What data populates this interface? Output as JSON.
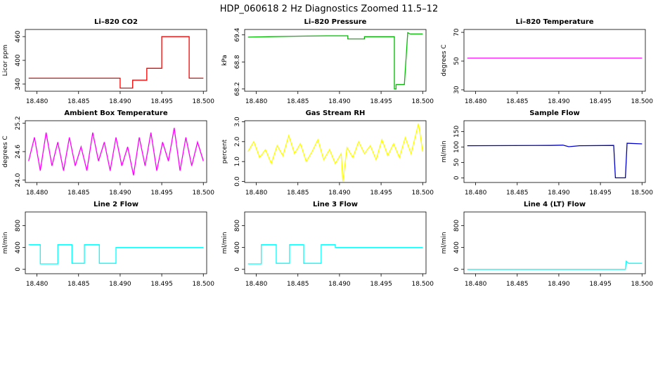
{
  "title": "HDP_060618  2 Hz Diagnostics Zoomed 11.5–12",
  "chart_data": [
    {
      "type": "line",
      "title": "Li–820 CO2",
      "ylabel": "Licor ppm",
      "color": "#ff0000",
      "x": [
        18.479,
        18.49,
        18.49,
        18.4915,
        18.4915,
        18.4932,
        18.4932,
        18.495,
        18.495,
        18.4983,
        18.4983,
        18.5
      ],
      "values": [
        355,
        355,
        330,
        330,
        350,
        350,
        380,
        380,
        460,
        460,
        355,
        355
      ],
      "xlim": [
        18.4786,
        18.5004
      ],
      "ylim": [
        322,
        478
      ],
      "xticks": [
        {
          "value": 18.48,
          "label": "18.480"
        },
        {
          "value": 18.485,
          "label": "18.485"
        },
        {
          "value": 18.49,
          "label": "18.490"
        },
        {
          "value": 18.495,
          "label": "18.495"
        },
        {
          "value": 18.5,
          "label": "18.500"
        }
      ],
      "yticks": [
        340,
        400,
        460
      ]
    },
    {
      "type": "line",
      "title": "Li–820 Pressure",
      "ylabel": "kPa",
      "color": "#00bb00",
      "x": [
        18.479,
        18.4845,
        18.4885,
        18.491,
        18.491,
        18.493,
        18.493,
        18.4966,
        18.4966,
        18.4968,
        18.4968,
        18.4978,
        18.4982,
        18.4985,
        18.5
      ],
      "values": [
        69.35,
        69.37,
        69.38,
        69.38,
        69.31,
        69.31,
        69.36,
        69.36,
        68.2,
        68.2,
        68.3,
        68.3,
        69.45,
        69.42,
        69.42
      ],
      "xlim": [
        18.4786,
        18.5004
      ],
      "ylim": [
        68.15,
        69.52
      ],
      "xticks": [
        {
          "value": 18.48,
          "label": "18.480"
        },
        {
          "value": 18.485,
          "label": "18.485"
        },
        {
          "value": 18.49,
          "label": "18.490"
        },
        {
          "value": 18.495,
          "label": "18.495"
        },
        {
          "value": 18.5,
          "label": "18.500"
        }
      ],
      "yticks": [
        {
          "value": 68.2,
          "label": "68.2"
        },
        {
          "value": 68.8,
          "label": "68.8"
        },
        {
          "value": 69.4,
          "label": "69.4"
        }
      ]
    },
    {
      "type": "line",
      "title": "Li–820 Temperature",
      "ylabel": "degrees C",
      "color": "#ff00ff",
      "x": [
        18.479,
        18.5
      ],
      "values": [
        52,
        52
      ],
      "xlim": [
        18.4786,
        18.5004
      ],
      "ylim": [
        29,
        72
      ],
      "xticks": [
        {
          "value": 18.48,
          "label": "18.480"
        },
        {
          "value": 18.485,
          "label": "18.485"
        },
        {
          "value": 18.49,
          "label": "18.490"
        },
        {
          "value": 18.495,
          "label": "18.495"
        },
        {
          "value": 18.5,
          "label": "18.500"
        }
      ],
      "yticks": [
        30,
        50,
        70
      ]
    },
    {
      "type": "line",
      "title": "Ambient Box Temperature",
      "ylabel": "degrees C",
      "color": "#ff00ff",
      "x": [
        18.479,
        18.4797,
        18.4804,
        18.4811,
        18.4818,
        18.4825,
        18.4832,
        18.4839,
        18.4846,
        18.4853,
        18.486,
        18.4867,
        18.4874,
        18.4881,
        18.4888,
        18.4895,
        18.4902,
        18.4909,
        18.4916,
        18.4923,
        18.493,
        18.4937,
        18.4944,
        18.4951,
        18.4958,
        18.4965,
        18.4972,
        18.4979,
        18.4986,
        18.4993,
        18.5
      ],
      "values": [
        24.4,
        24.9,
        24.2,
        25.0,
        24.3,
        24.8,
        24.2,
        24.9,
        24.3,
        24.7,
        24.2,
        25.0,
        24.4,
        24.8,
        24.2,
        24.9,
        24.3,
        24.7,
        24.1,
        24.9,
        24.3,
        25.0,
        24.2,
        24.8,
        24.4,
        25.1,
        24.2,
        24.9,
        24.3,
        24.8,
        24.4
      ],
      "xlim": [
        18.4786,
        18.5004
      ],
      "ylim": [
        23.95,
        25.25
      ],
      "xticks": [
        {
          "value": 18.48,
          "label": "18.480"
        },
        {
          "value": 18.485,
          "label": "18.485"
        },
        {
          "value": 18.49,
          "label": "18.490"
        },
        {
          "value": 18.495,
          "label": "18.495"
        },
        {
          "value": 18.5,
          "label": "18.500"
        }
      ],
      "yticks": [
        {
          "value": 24.0,
          "label": "24.0"
        },
        24.6,
        25.2
      ]
    },
    {
      "type": "line",
      "title": "Gas Stream RH",
      "ylabel": "percent",
      "color": "#ffff00",
      "x": [
        18.479,
        18.4797,
        18.4804,
        18.4811,
        18.4818,
        18.4825,
        18.4832,
        18.4839,
        18.4846,
        18.4853,
        18.486,
        18.4867,
        18.4874,
        18.4881,
        18.4888,
        18.4895,
        18.4902,
        18.4904,
        18.4909,
        18.4916,
        18.4923,
        18.493,
        18.4937,
        18.4944,
        18.4951,
        18.4958,
        18.4965,
        18.4972,
        18.4979,
        18.4986,
        18.4995,
        18.5
      ],
      "values": [
        1.5,
        2.0,
        1.2,
        1.6,
        0.9,
        1.8,
        1.3,
        2.3,
        1.4,
        1.9,
        1.0,
        1.5,
        2.1,
        1.1,
        1.6,
        0.9,
        1.4,
        0.0,
        1.7,
        1.2,
        2.0,
        1.4,
        1.8,
        1.1,
        2.1,
        1.3,
        1.9,
        1.2,
        2.2,
        1.4,
        2.9,
        1.5
      ],
      "xlim": [
        18.4786,
        18.5004
      ],
      "ylim": [
        -0.05,
        3.05
      ],
      "xticks": [
        {
          "value": 18.48,
          "label": "18.480"
        },
        {
          "value": 18.485,
          "label": "18.485"
        },
        {
          "value": 18.49,
          "label": "18.490"
        },
        {
          "value": 18.495,
          "label": "18.495"
        },
        {
          "value": 18.5,
          "label": "18.500"
        }
      ],
      "yticks": [
        {
          "value": 0,
          "label": "0.0"
        },
        {
          "value": 1,
          "label": "1.0"
        },
        {
          "value": 2,
          "label": "2.0"
        },
        {
          "value": 3,
          "label": "3.0"
        }
      ]
    },
    {
      "type": "line",
      "title": "Sample Flow",
      "ylabel": "ml/min",
      "color": "#0000cc",
      "x": [
        18.479,
        18.489,
        18.4905,
        18.4912,
        18.4925,
        18.4966,
        18.4968,
        18.498,
        18.4982,
        18.5
      ],
      "values": [
        104,
        105,
        106,
        101,
        104,
        105,
        0,
        0,
        112,
        110
      ],
      "xlim": [
        18.4786,
        18.5004
      ],
      "ylim": [
        -15,
        185
      ],
      "xticks": [
        {
          "value": 18.48,
          "label": "18.480"
        },
        {
          "value": 18.485,
          "label": "18.485"
        },
        {
          "value": 18.49,
          "label": "18.490"
        },
        {
          "value": 18.495,
          "label": "18.495"
        },
        {
          "value": 18.5,
          "label": "18.500"
        }
      ],
      "yticks": [
        0,
        50,
        100,
        150
      ]
    },
    {
      "type": "line",
      "title": "Line 2 Flow",
      "ylabel": "ml/min",
      "color": "#00ffff",
      "x": [
        18.479,
        18.4804,
        18.4804,
        18.4825,
        18.4825,
        18.4842,
        18.4842,
        18.4857,
        18.4857,
        18.4875,
        18.4875,
        18.4895,
        18.4895,
        18.5
      ],
      "values": [
        450,
        450,
        100,
        100,
        450,
        450,
        110,
        110,
        450,
        450,
        110,
        110,
        400,
        400
      ],
      "xlim": [
        18.4786,
        18.5004
      ],
      "ylim": [
        -80,
        1050
      ],
      "xticks": [
        {
          "value": 18.48,
          "label": "18.480"
        },
        {
          "value": 18.485,
          "label": "18.485"
        },
        {
          "value": 18.49,
          "label": "18.490"
        },
        {
          "value": 18.495,
          "label": "18.495"
        },
        {
          "value": 18.5,
          "label": "18.500"
        }
      ],
      "yticks": [
        0,
        400,
        800
      ]
    },
    {
      "type": "line",
      "title": "Line 3 Flow",
      "ylabel": "ml/min",
      "color": "#00ffff",
      "x": [
        18.479,
        18.4806,
        18.4806,
        18.4824,
        18.4824,
        18.484,
        18.484,
        18.4857,
        18.4857,
        18.4878,
        18.4878,
        18.4895,
        18.4895,
        18.5
      ],
      "values": [
        100,
        100,
        450,
        450,
        110,
        110,
        450,
        450,
        110,
        110,
        450,
        450,
        400,
        400
      ],
      "xlim": [
        18.4786,
        18.5004
      ],
      "ylim": [
        -80,
        1050
      ],
      "xticks": [
        {
          "value": 18.48,
          "label": "18.480"
        },
        {
          "value": 18.485,
          "label": "18.485"
        },
        {
          "value": 18.49,
          "label": "18.490"
        },
        {
          "value": 18.495,
          "label": "18.495"
        },
        {
          "value": 18.5,
          "label": "18.500"
        }
      ],
      "yticks": [
        0,
        400,
        800
      ]
    },
    {
      "type": "line",
      "title": "Line 4 (LT) Flow",
      "ylabel": "ml/min",
      "color": "#00ffff",
      "x": [
        18.479,
        18.498,
        18.4981,
        18.4984,
        18.5
      ],
      "values": [
        0,
        0,
        150,
        110,
        110
      ],
      "xlim": [
        18.4786,
        18.5004
      ],
      "ylim": [
        -80,
        1050
      ],
      "xticks": [
        {
          "value": 18.48,
          "label": "18.480"
        },
        {
          "value": 18.485,
          "label": "18.485"
        },
        {
          "value": 18.49,
          "label": "18.490"
        },
        {
          "value": 18.495,
          "label": "18.495"
        },
        {
          "value": 18.5,
          "label": "18.500"
        }
      ],
      "yticks": [
        0,
        400,
        800
      ]
    }
  ]
}
